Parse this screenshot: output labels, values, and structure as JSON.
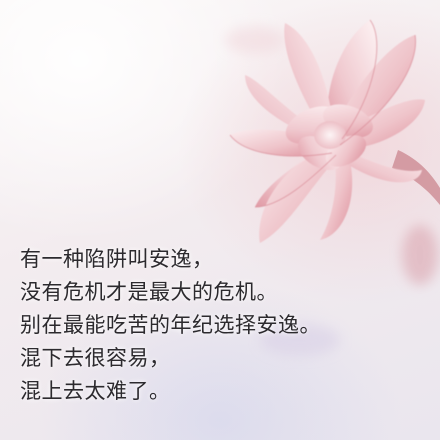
{
  "image": {
    "subject": "pink-succulent-rosette-icon",
    "colors": {
      "petal_light": "#f6e3e6",
      "petal_pink": "#e7aab3",
      "petal_edge": "#d98a96",
      "background": "#f3ecef",
      "text": "#2c2a2e"
    }
  },
  "quote": {
    "lines": [
      "有一种陷阱叫安逸，",
      "没有危机才是最大的危机。",
      "别在最能吃苦的年纪选择安逸。",
      "混下去很容易，",
      "混上去太难了。"
    ]
  }
}
